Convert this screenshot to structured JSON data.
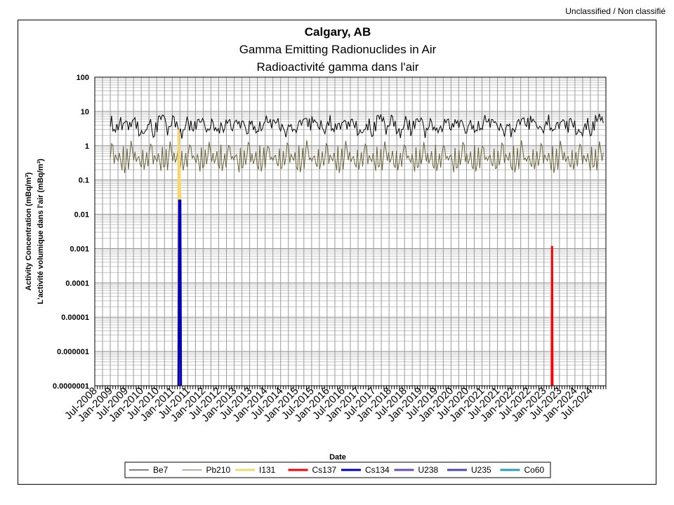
{
  "page": {
    "classification": "Unclassified / Non classifié"
  },
  "chart_data": {
    "type": "line",
    "title": "Calgary, AB",
    "subtitle": [
      "Gamma Emitting Radionuclides in Air",
      "Radioactivité gamma dans l'air"
    ],
    "xlabel": "Date",
    "ylabel": [
      "Activity Concentration  (mBq/m³)",
      "L'activité volumique dans l'air (mBq/m³)"
    ],
    "y_scale": "log",
    "ylim": [
      1e-07,
      100
    ],
    "y_ticks": [
      "100",
      "10",
      "1",
      "0.1",
      "0.01",
      "0.001",
      "0.0001",
      "0.00001",
      "0.000001",
      "0.0000001"
    ],
    "xlim": [
      "2008-07",
      "2025-01"
    ],
    "x_ticks": [
      "Jul-2008",
      "Jan-2009",
      "Jul-2009",
      "Jan-2010",
      "Jul-2010",
      "Jan-2011",
      "Jul-2011",
      "Jan-2012",
      "Jul-2012",
      "Jan-2013",
      "Jul-2013",
      "Jan-2014",
      "Jul-2014",
      "Jan-2015",
      "Jul-2015",
      "Jan-2016",
      "Jul-2016",
      "Jan-2017",
      "Jul-2017",
      "Jan-2018",
      "Jul-2018",
      "Jan-2019",
      "Jul-2019",
      "Jan-2020",
      "Jul-2020",
      "Jan-2021",
      "Jul-2021",
      "Jan-2022",
      "Jul-2022",
      "Jan-2023",
      "Jul-2023",
      "Jan-2024",
      "Jul-2024"
    ],
    "grid": true,
    "legend_position": "bottom",
    "series": [
      {
        "name": "Be7",
        "color": "#000000",
        "x_range": [
          "2009-01",
          "2024-12"
        ],
        "typical_range": [
          2,
          7
        ],
        "values": [
          4.5,
          3.2,
          5.8,
          6.5,
          4.1,
          3.0,
          5.2,
          7.8,
          4.6,
          3.5,
          2.6,
          4.0,
          6.2,
          3.8,
          2.4,
          5.0,
          7.5,
          3.1,
          2.2,
          4.4,
          5.6,
          2.9,
          3.6,
          6.0,
          4.2,
          2.0,
          3.3,
          5.5,
          4.8,
          2.5,
          3.9,
          6.8,
          4.3,
          2.7,
          3.4,
          5.1,
          3.7,
          2.1,
          4.9,
          6.1,
          3.0,
          2.3,
          4.7,
          5.9,
          3.2,
          2.8,
          4.0,
          7.2,
          3.6,
          2.4,
          5.3,
          4.1,
          2.6,
          3.8,
          6.4,
          4.5,
          2.2,
          3.5,
          5.7,
          4.4,
          2.9,
          3.3,
          6.6,
          4.0,
          2.5,
          5.0,
          3.1,
          2.0,
          4.6,
          7.6,
          3.9,
          2.7,
          5.4,
          4.2,
          3.0,
          3.6,
          6.3,
          4.8,
          2.3,
          3.4,
          5.8,
          3.7,
          2.6,
          4.3,
          6.9,
          4.1,
          2.4,
          3.2,
          5.5,
          4.7,
          2.8,
          3.9,
          6.0,
          3.3,
          2.1,
          4.5,
          7.0,
          3.6,
          2.5,
          5.2,
          4.0,
          2.9,
          3.4,
          5.9,
          4.4,
          2.2,
          3.8,
          6.5,
          3.5,
          2.6,
          4.9,
          3.1
        ]
      },
      {
        "name": "Pb210",
        "color": "#6b6339",
        "x_range": [
          "2009-01",
          "2024-12"
        ],
        "typical_range": [
          0.15,
          0.9
        ],
        "values": [
          0.55,
          0.35,
          0.8,
          0.25,
          0.45,
          0.6,
          0.3,
          1.2,
          0.4,
          0.2,
          0.5,
          0.7,
          0.28,
          0.38,
          0.9,
          0.22,
          0.48,
          0.65,
          0.3,
          0.42,
          0.85,
          0.2,
          0.36,
          0.6,
          0.27,
          0.5,
          0.75,
          0.24,
          0.4,
          0.55,
          0.32,
          0.8,
          0.21,
          0.46,
          0.62,
          0.29,
          0.37,
          0.95,
          0.23,
          0.44,
          0.58,
          0.31,
          0.7,
          0.19,
          0.41,
          0.66,
          0.28,
          0.52,
          0.88,
          0.22,
          0.39,
          0.6,
          0.33,
          0.47,
          0.78,
          0.2,
          0.43,
          0.57,
          0.3,
          0.72,
          0.25,
          0.49,
          0.64,
          0.27,
          0.4,
          0.83,
          0.21,
          0.45,
          0.59,
          0.32,
          0.68,
          0.24,
          0.38,
          0.9,
          0.26,
          0.5,
          0.61,
          0.3,
          0.44,
          0.76,
          0.2,
          0.41,
          0.56,
          0.34,
          0.7,
          0.23,
          0.47,
          0.63,
          0.28,
          0.52,
          0.86,
          0.22,
          0.4,
          0.58,
          0.31,
          0.74,
          0.25,
          0.46,
          0.6,
          0.29,
          0.39,
          1.3,
          0.24,
          0.5,
          0.65,
          0.33,
          0.42,
          0.8,
          0.21,
          0.55
        ]
      },
      {
        "name": "I131",
        "color": "#f5d76e",
        "points": [
          [
            "2011-03-10",
            1e-07
          ],
          [
            "2011-03-15",
            3.0
          ],
          [
            "2011-03-25",
            0.3
          ],
          [
            "2011-04-05",
            0.03
          ],
          [
            "2011-04-10",
            1e-07
          ]
        ]
      },
      {
        "name": "Cs137",
        "color": "#ff0000",
        "points": [
          [
            "2023-04-01",
            1e-07
          ],
          [
            "2023-04-05",
            0.0012
          ],
          [
            "2023-04-10",
            1e-07
          ]
        ]
      },
      {
        "name": "Cs134",
        "color": "#0000c0",
        "points": [
          [
            "2011-03-15",
            1e-07
          ],
          [
            "2011-03-22",
            0.025
          ],
          [
            "2011-04-05",
            0.025
          ],
          [
            "2011-04-12",
            1e-07
          ]
        ]
      },
      {
        "name": "U238",
        "color": "#6f4fb0",
        "points": []
      },
      {
        "name": "U235",
        "color": "#4a4ab0",
        "points": []
      },
      {
        "name": "Co60",
        "color": "#2aa0b8",
        "points": []
      }
    ]
  }
}
